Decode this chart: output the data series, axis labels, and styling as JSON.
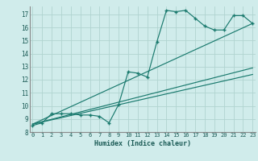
{
  "jagged_x": [
    0,
    1,
    2,
    3,
    4,
    5,
    6,
    7,
    8,
    9,
    10,
    11,
    12,
    13,
    14,
    15,
    16,
    17,
    18,
    19,
    20,
    21,
    22,
    23
  ],
  "jagged_y": [
    8.5,
    8.7,
    9.4,
    9.4,
    9.4,
    9.3,
    9.3,
    9.2,
    8.7,
    10.1,
    12.6,
    12.5,
    12.2,
    14.9,
    17.3,
    17.2,
    17.3,
    16.7,
    16.1,
    15.8,
    15.8,
    16.9,
    16.9,
    16.3
  ],
  "line1_x": [
    0,
    23
  ],
  "line1_y": [
    8.6,
    12.4
  ],
  "line2_x": [
    0,
    23
  ],
  "line2_y": [
    8.6,
    12.9
  ],
  "line3_x": [
    0,
    23
  ],
  "line3_y": [
    8.6,
    16.3
  ],
  "xlim": [
    -0.3,
    23.3
  ],
  "ylim": [
    8,
    17.6
  ],
  "xticks": [
    0,
    1,
    2,
    3,
    4,
    5,
    6,
    7,
    8,
    9,
    10,
    11,
    12,
    13,
    14,
    15,
    16,
    17,
    18,
    19,
    20,
    21,
    22,
    23
  ],
  "yticks": [
    8,
    9,
    10,
    11,
    12,
    13,
    14,
    15,
    16,
    17
  ],
  "xlabel": "Humidex (Indice chaleur)",
  "line_color": "#1a7a6e",
  "bg_color": "#d0eceb",
  "grid_color": "#b0d4d0"
}
